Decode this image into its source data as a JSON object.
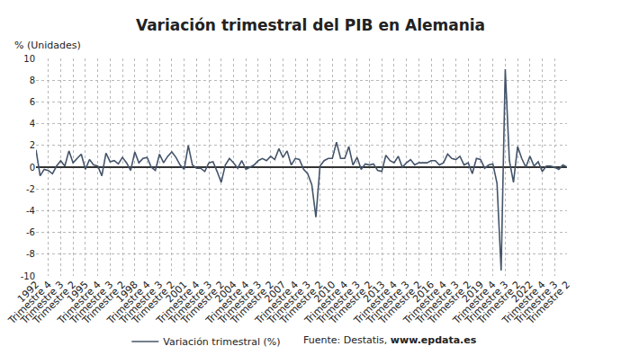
{
  "chart_data": {
    "type": "line",
    "title": "Variación trimestral del PIB en Alemania",
    "ylabel": "% (Unidades)",
    "categories": [
      "1992",
      null,
      null,
      "Trimestre 4",
      null,
      null,
      "Trimestre 3",
      null,
      null,
      "Trimestre 2",
      null,
      null,
      "1995",
      null,
      null,
      "Trimestre 4",
      null,
      null,
      "Trimestre 3",
      null,
      null,
      "Trimestre 2",
      null,
      null,
      "1998",
      null,
      null,
      "Trimestre 4",
      null,
      null,
      "Trimestre 3",
      null,
      null,
      "Trimestre 2",
      null,
      null,
      "2001",
      null,
      null,
      "Trimestre 4",
      null,
      null,
      "Trimestre 3",
      null,
      null,
      "Trimestre 2",
      null,
      null,
      "2004",
      null,
      null,
      "Trimestre 4",
      null,
      null,
      "Trimestre 3",
      null,
      null,
      "Trimestre 2",
      null,
      null,
      "2007",
      null,
      null,
      "Trimestre 4",
      null,
      null,
      "Trimestre 3",
      null,
      null,
      "Trimestre 2",
      null,
      null,
      "2010",
      null,
      null,
      "Trimestre 4",
      null,
      null,
      "Trimestre 3",
      null,
      null,
      "Trimestre 2",
      null,
      null,
      "2013",
      null,
      null,
      "Trimestre 4",
      null,
      null,
      "Trimestre 3",
      null,
      null,
      "Trimestre 2",
      null,
      null,
      "2016",
      null,
      null,
      "Trimestre 4",
      null,
      null,
      "Trimestre 3",
      null,
      null,
      "Trimestre 2",
      null,
      null,
      "2019",
      null,
      null,
      "Trimestre 4",
      null,
      null,
      "Trimestre 3",
      null,
      null,
      "Trimestre 2",
      null,
      null,
      "2022",
      null,
      null,
      "Trimestre 4",
      null,
      null,
      "Trimestre 3",
      null,
      null,
      "Trimestre 2"
    ],
    "series": [
      {
        "name": "Variación trimestral (%)",
        "color": "#44546a",
        "values": [
          1.6,
          -0.8,
          -0.2,
          -0.3,
          -0.6,
          0.1,
          0.6,
          0.1,
          1.5,
          0.4,
          0.8,
          1.2,
          -0.2,
          0.7,
          0.2,
          0.1,
          -0.8,
          1.3,
          0.5,
          0.6,
          0.3,
          0.9,
          0.4,
          -0.3,
          1.4,
          0.4,
          0.8,
          0.9,
          0.0,
          -0.3,
          1.2,
          0.4,
          1.0,
          1.4,
          0.9,
          0.2,
          -0.2,
          2.0,
          0.2,
          -0.1,
          -0.1,
          -0.4,
          0.4,
          0.5,
          -0.4,
          -1.4,
          0.2,
          0.8,
          0.4,
          -0.1,
          0.6,
          -0.2,
          0.0,
          0.2,
          0.6,
          0.8,
          0.6,
          1.0,
          0.7,
          1.7,
          0.9,
          1.5,
          0.2,
          0.8,
          0.7,
          -0.2,
          -0.6,
          -1.6,
          -4.6,
          0.1,
          0.6,
          0.8,
          0.8,
          2.3,
          0.8,
          0.8,
          1.9,
          0.2,
          0.9,
          -0.2,
          0.3,
          0.2,
          0.3,
          -0.3,
          -0.4,
          1.1,
          0.6,
          0.4,
          1.0,
          0.0,
          0.4,
          0.7,
          0.2,
          0.4,
          0.4,
          0.4,
          0.6,
          0.6,
          0.2,
          0.4,
          1.2,
          0.8,
          0.7,
          1.0,
          0.2,
          0.4,
          -0.6,
          0.8,
          0.7,
          -0.1,
          0.2,
          0.3,
          -1.5,
          -9.5,
          9.0,
          0.6,
          -1.4,
          1.9,
          0.8,
          0.0,
          1.0,
          0.1,
          0.5,
          -0.4,
          0.1,
          0.1,
          0.0,
          -0.2,
          0.2,
          0.0
        ]
      }
    ],
    "ylim": [
      -10,
      10
    ],
    "yticks": [
      -10,
      -8,
      -6,
      -4,
      -2,
      0,
      2,
      4,
      6,
      8,
      10
    ],
    "grid": true,
    "legend": "bottom",
    "source": "Fuente: Destatis,",
    "source_link": "www.epdata.es"
  }
}
